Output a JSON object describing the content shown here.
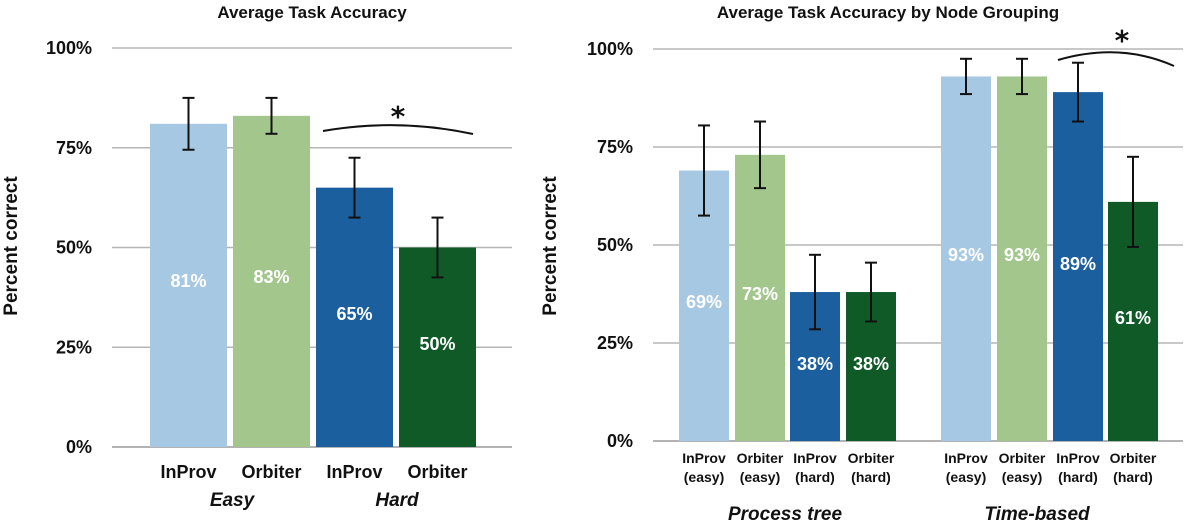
{
  "colors": {
    "inprov_easy": "#a7c8e3",
    "orbiter_easy": "#a3c68c",
    "inprov_hard": "#1b5f9e",
    "orbiter_hard": "#0f5a26",
    "grid": "#b5b5b5",
    "error_bar": "#111111"
  },
  "chart_data": [
    {
      "type": "bar",
      "title": "Average Task Accuracy",
      "ylabel": "Percent correct",
      "ylim": [
        0,
        100
      ],
      "yticks": [
        "0%",
        "25%",
        "50%",
        "75%",
        "100%"
      ],
      "grid": true,
      "categories": [
        "InProv",
        "Orbiter",
        "InProv",
        "Orbiter"
      ],
      "groups": [
        "Easy",
        "Hard"
      ],
      "values": [
        81,
        83,
        65,
        50
      ],
      "error": [
        [
          74.5,
          87.5
        ],
        [
          78.5,
          87.5
        ],
        [
          57.5,
          72.5
        ],
        [
          42.5,
          57.5
        ]
      ],
      "data_labels": [
        "81%",
        "83%",
        "65%",
        "50%"
      ],
      "significance": "*"
    },
    {
      "type": "bar",
      "title": "Average Task Accuracy by Node Grouping",
      "ylabel": "Percent correct",
      "ylim": [
        0,
        100
      ],
      "yticks": [
        "0%",
        "25%",
        "50%",
        "75%",
        "100%"
      ],
      "grid": true,
      "categories": [
        [
          "InProv",
          "(easy)"
        ],
        [
          "Orbiter",
          "(easy)"
        ],
        [
          "InProv",
          "(hard)"
        ],
        [
          "Orbiter",
          "(hard)"
        ],
        [
          "InProv",
          "(easy)"
        ],
        [
          "Orbiter",
          "(easy)"
        ],
        [
          "InProv",
          "(hard)"
        ],
        [
          "Orbiter",
          "(hard)"
        ]
      ],
      "groups": [
        "Process tree",
        "Time-based"
      ],
      "values": [
        69,
        73,
        38,
        38,
        93,
        93,
        89,
        61
      ],
      "error": [
        [
          57.5,
          80.5
        ],
        [
          64.5,
          81.5
        ],
        [
          28.5,
          47.5
        ],
        [
          30.5,
          45.5
        ],
        [
          88.5,
          97.5
        ],
        [
          88.5,
          97.5
        ],
        [
          81.5,
          96.5
        ],
        [
          49.5,
          72.5
        ]
      ],
      "data_labels": [
        "69%",
        "73%",
        "38%",
        "38%",
        "93%",
        "93%",
        "89%",
        "61%"
      ],
      "significance": "*"
    }
  ]
}
